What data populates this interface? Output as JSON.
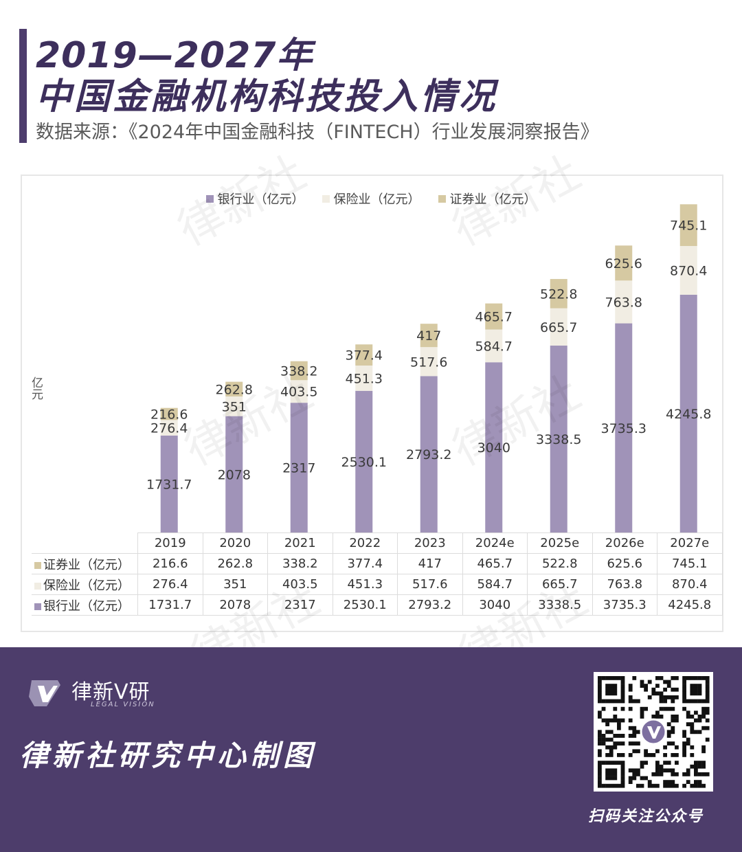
{
  "header": {
    "title_line1": "2019—2027年",
    "title_line2": "中国金融机构科技投入情况",
    "source": "数据来源：《2024年中国金融科技（FINTECH）行业发展洞察报告》"
  },
  "chart_data": {
    "type": "bar",
    "stacked": true,
    "categories": [
      "2019",
      "2020",
      "2021",
      "2022",
      "2023",
      "2024e",
      "2025e",
      "2026e",
      "2027e"
    ],
    "series": [
      {
        "name": "银行业（亿元）",
        "values": [
          1731.7,
          2078,
          2317,
          2530.1,
          2793.2,
          3040,
          3338.5,
          3735.3,
          4245.8
        ],
        "color": "#a093b8"
      },
      {
        "name": "保险业（亿元）",
        "values": [
          276.4,
          351,
          403.5,
          451.3,
          517.6,
          584.7,
          665.7,
          763.8,
          870.4
        ],
        "color": "#f1ede3"
      },
      {
        "name": "证券业（亿元）",
        "values": [
          216.6,
          262.8,
          338.2,
          377.4,
          417,
          465.7,
          522.8,
          625.6,
          745.1
        ],
        "color": "#d6c9a2"
      }
    ],
    "ylabel": "亿元",
    "legend_position": "top",
    "grid": false
  },
  "table": {
    "rows": [
      {
        "label": "证券业（亿元）",
        "color": "#d6c9a2",
        "values": [
          "216.6",
          "262.8",
          "338.2",
          "377.4",
          "417",
          "465.7",
          "522.8",
          "625.6",
          "745.1"
        ]
      },
      {
        "label": "保险业（亿元）",
        "color": "#f1ede3",
        "values": [
          "276.4",
          "351",
          "403.5",
          "451.3",
          "517.6",
          "584.7",
          "665.7",
          "763.8",
          "870.4"
        ]
      },
      {
        "label": "银行业（亿元）",
        "color": "#a093b8",
        "values": [
          "1731.7",
          "2078",
          "2317",
          "2530.1",
          "2793.2",
          "3040",
          "3338.5",
          "3735.3",
          "4245.8"
        ]
      }
    ]
  },
  "watermark": "律新社",
  "footer": {
    "brand": "律新V研",
    "brand_sub": "LEGAL VISION",
    "credit": "律新社研究中心制图",
    "qr_caption": "扫码关注公众号"
  }
}
